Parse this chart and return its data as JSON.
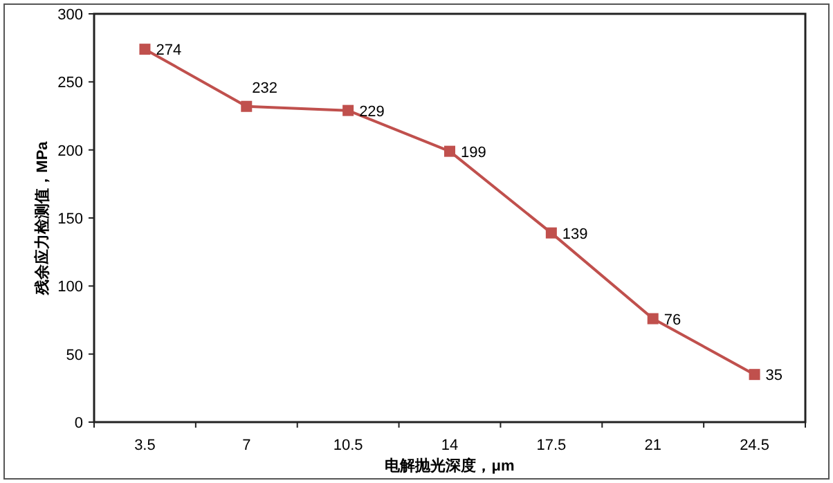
{
  "chart_data": {
    "type": "line",
    "xlabel": "电解抛光深度，μm",
    "ylabel": "残余应力检测值，MPa",
    "categories": [
      "3.5",
      "7",
      "10.5",
      "14",
      "17.5",
      "21",
      "24.5"
    ],
    "series": [
      {
        "color": "#c0504d",
        "values": [
          274,
          232,
          229,
          199,
          139,
          76,
          35
        ]
      }
    ],
    "ylim": [
      0,
      300
    ],
    "yticks": [
      0,
      50,
      100,
      150,
      200,
      250,
      300
    ],
    "marker": "square",
    "data_labels": true,
    "grid": false
  }
}
